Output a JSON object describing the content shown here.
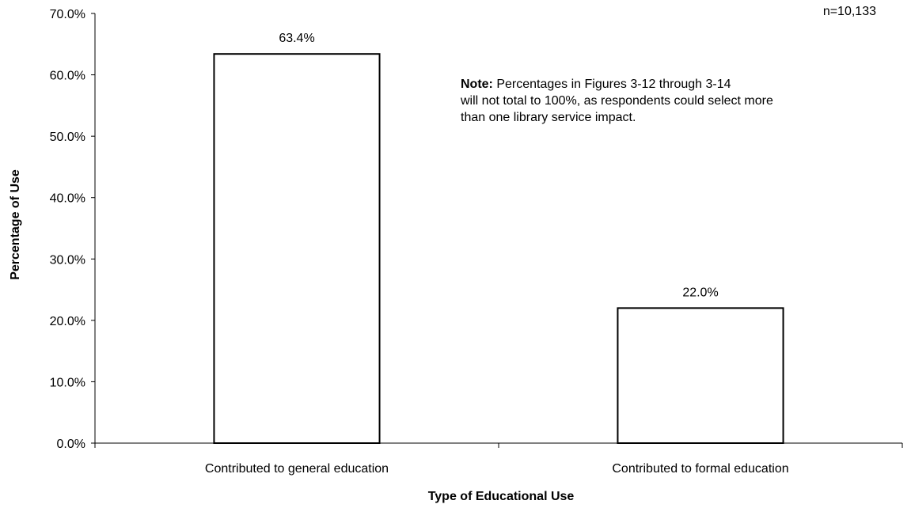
{
  "chart_data": {
    "type": "bar",
    "categories": [
      "Contributed to general education",
      "Contributed to formal education"
    ],
    "values": [
      63.4,
      22.0
    ],
    "data_labels": [
      "63.4%",
      "22.0%"
    ],
    "title": "",
    "xlabel": "Type of Educational Use",
    "ylabel": "Percentage of Use",
    "ylim": [
      0,
      70
    ],
    "yticks": [
      0,
      10,
      20,
      30,
      40,
      50,
      60,
      70
    ],
    "ytick_labels": [
      "0.0%",
      "10.0%",
      "20.0%",
      "30.0%",
      "40.0%",
      "50.0%",
      "60.0%",
      "70.0%"
    ],
    "grid": false,
    "bar_fill": "#ffffff",
    "bar_stroke": "#000000"
  },
  "annotations": {
    "sample_size": "n=10,133",
    "note_label": "Note:",
    "note_line1": " Percentages in Figures 3-12 through 3-14",
    "note_line2": "will not total to 100%, as respondents could select more",
    "note_line3": "than one library service impact."
  }
}
